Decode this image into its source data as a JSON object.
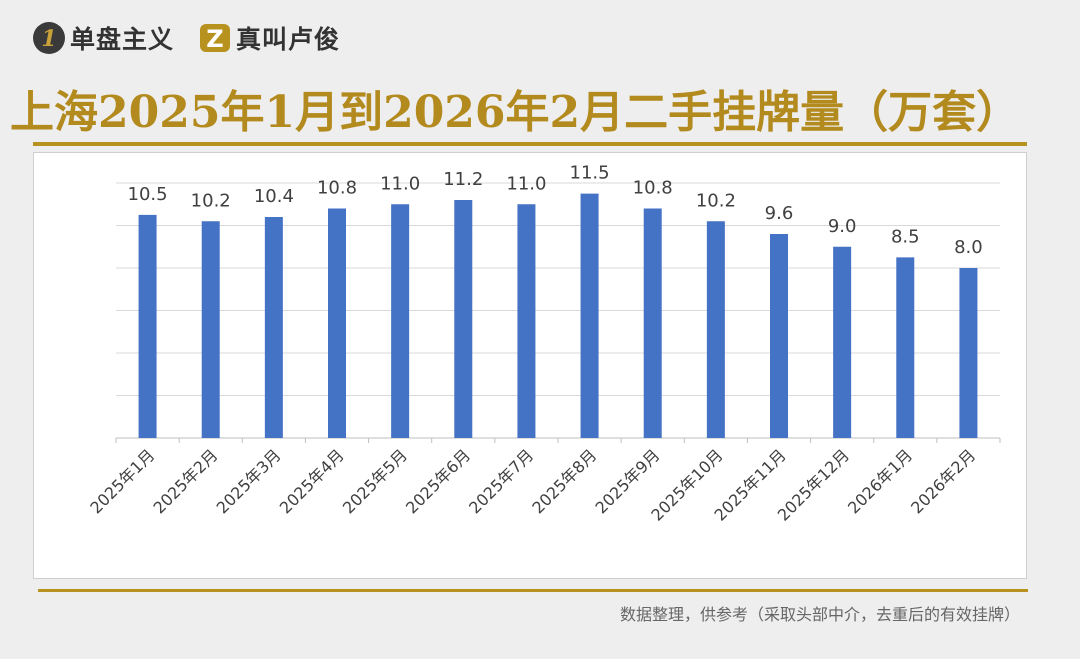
{
  "brands": [
    {
      "glyph": "1",
      "name": "单盘主义",
      "icon": "circle-one-icon"
    },
    {
      "glyph": "Z",
      "name": "真叫卢俊",
      "icon": "z-logo-icon"
    }
  ],
  "colors": {
    "gold": "#b38a1e",
    "bar": "#4472c4"
  },
  "footnote": "数据整理，供参考（采取头部中介，去重后的有效挂牌）",
  "chart_data": {
    "type": "bar",
    "title": "上海2025年1月到2026年2月二手挂牌量（万套）",
    "categories": [
      "2025年1月",
      "2025年2月",
      "2025年3月",
      "2025年4月",
      "2025年5月",
      "2025年6月",
      "2025年7月",
      "2025年8月",
      "2025年9月",
      "2025年10月",
      "2025年11月",
      "2025年12月",
      "2026年1月",
      "2026年2月"
    ],
    "values": [
      10.5,
      10.2,
      10.4,
      10.8,
      11.0,
      11.2,
      11.0,
      11.5,
      10.8,
      10.2,
      9.6,
      9.0,
      8.5,
      8.0
    ],
    "data_labels": [
      "10.5",
      "10.2",
      "10.4",
      "10.8",
      "11.0",
      "11.2",
      "11.0",
      "11.5",
      "10.8",
      "10.2",
      "9.6",
      "9.0",
      "8.5",
      "8.0"
    ],
    "ylim": [
      0,
      12
    ],
    "y_gridlines": [
      0,
      2,
      4,
      6,
      8,
      10,
      12
    ],
    "y_tick_labels_shown": false,
    "grid": true,
    "legend": "none"
  }
}
